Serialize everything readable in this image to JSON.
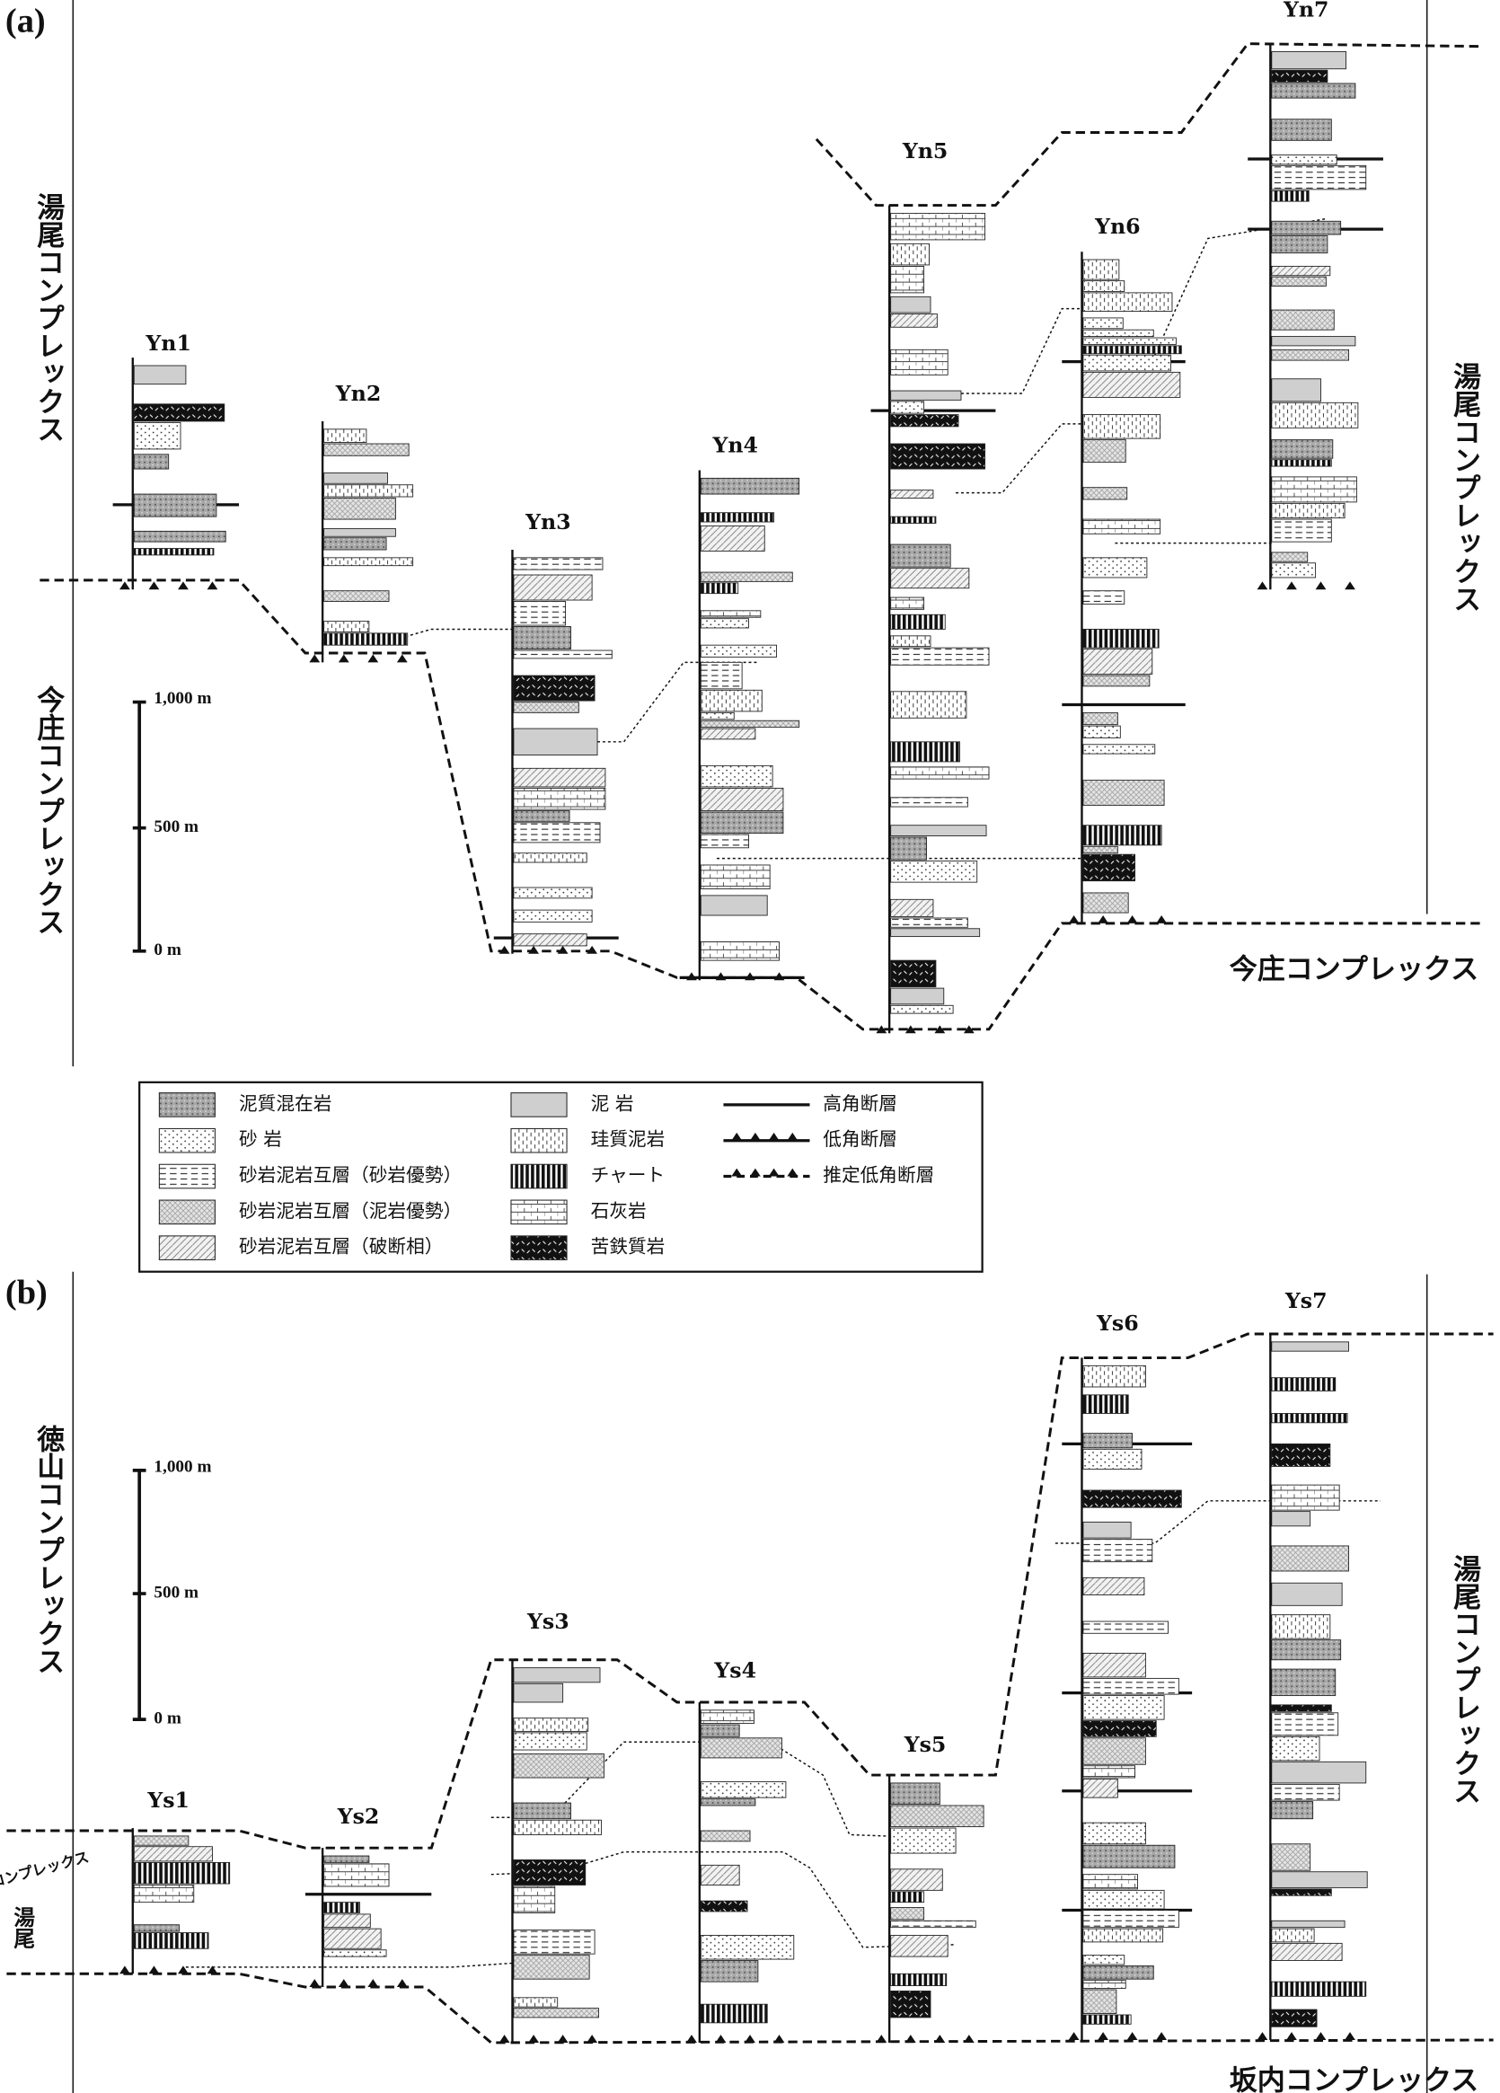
{
  "panel_a": {
    "label": "(a)",
    "columns": [
      "Yn1",
      "Yn2",
      "Yn3",
      "Yn4",
      "Yn5",
      "Yn6",
      "Yn7"
    ],
    "complexes": {
      "left_upper": "湯尾コンプレックス",
      "left_lower": "今庄コンプレックス",
      "right": "湯尾コンプレックス",
      "bottom": "今庄コンプレックス"
    },
    "scale": [
      "1,000 m",
      "500 m",
      "0 m"
    ]
  },
  "legend": {
    "items": [
      "泥質混在岩",
      "砂 岩",
      "砂岩泥岩互層（砂岩優勢）",
      "砂岩泥岩互層（泥岩優勢）",
      "砂岩泥岩互層（破断相）",
      "泥 岩",
      "珪質泥岩",
      "チャート",
      "石灰岩",
      "苦鉄質岩",
      "高角断層",
      "低角断層",
      "推定低角断層"
    ]
  },
  "panel_b": {
    "label": "(b)",
    "columns": [
      "Ys1",
      "Ys2",
      "Ys3",
      "Ys4",
      "Ys5",
      "Ys6",
      "Ys7"
    ],
    "complexes": {
      "left_upper": "徳山コンプレックス",
      "left_small_1": "湯尾",
      "left_small_2": "コンプレックス",
      "right": "湯尾コンプレックス",
      "bottom": "坂内コンプレックス"
    },
    "scale": [
      "1,000 m",
      "500 m",
      "0 m"
    ]
  }
}
